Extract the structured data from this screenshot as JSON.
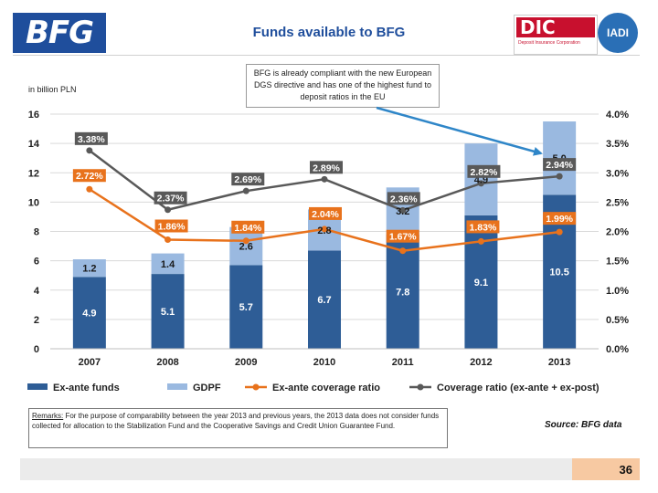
{
  "header": {
    "logo_left": "BFG",
    "title": "Funds available to BFG",
    "logo_right": "DIC",
    "logo_right_sub": "Deposit Insurance Corporation",
    "logo_far_right": "IADI"
  },
  "callout": {
    "text": "BFG is already compliant with the new European DGS directive and has one of the highest fund to deposit ratios in the EU"
  },
  "remarks": {
    "label": "Remarks:",
    "text": " For the purpose of comparability between the year 2013 and previous years, the 2013 data does not consider funds collected for allocation to the Stabilization Fund and the Cooperative Savings and Credit Union Guarantee Fund."
  },
  "source": "Source: BFG data",
  "page_number": "36",
  "colors": {
    "ex_ante": "#2e5d96",
    "gdpf": "#9ab9e0",
    "ex_ante_ratio": "#e8721c",
    "coverage_ratio": "#595959",
    "arrow": "#2f86c8"
  },
  "chart_data": {
    "type": "bar",
    "stacked": true,
    "unit_label": "in billion PLN",
    "categories": [
      "2007",
      "2008",
      "2009",
      "2010",
      "2011",
      "2012",
      "2013"
    ],
    "ylim": [
      0,
      16
    ],
    "y_ticks": [
      "0",
      "2",
      "4",
      "6",
      "8",
      "10",
      "12",
      "14",
      "16"
    ],
    "y2lim": [
      0.0,
      4.0
    ],
    "y2_ticks": [
      "0.0%",
      "0.5%",
      "1.0%",
      "1.5%",
      "2.0%",
      "2.5%",
      "3.0%",
      "3.5%",
      "4.0%"
    ],
    "grid": true,
    "legend_position": "bottom",
    "series": [
      {
        "name": "Ex-ante funds",
        "kind": "bar",
        "values": [
          4.9,
          5.1,
          5.7,
          6.7,
          7.8,
          9.1,
          10.5
        ],
        "labels": [
          "4.9",
          "5.1",
          "5.7",
          "6.7",
          "7.8",
          "9.1",
          "10.5"
        ]
      },
      {
        "name": "GDPF",
        "kind": "bar",
        "values": [
          1.2,
          1.4,
          2.6,
          2.8,
          3.2,
          4.9,
          5.0
        ],
        "labels": [
          "1.2",
          "1.4",
          "2.6",
          "2.8",
          "3.2",
          "4.9",
          "5.0"
        ]
      },
      {
        "name": "Ex-ante coverage ratio",
        "kind": "line",
        "axis": "right",
        "values": [
          2.72,
          1.86,
          1.84,
          2.04,
          1.67,
          1.83,
          1.99
        ],
        "labels": [
          "2.72%",
          "1.86%",
          "1.84%",
          "2.04%",
          "1.67%",
          "1.83%",
          "1.99%"
        ]
      },
      {
        "name": "Coverage ratio (ex-ante + ex-post)",
        "kind": "line",
        "axis": "right",
        "values": [
          3.38,
          2.37,
          2.69,
          2.89,
          2.36,
          2.82,
          2.94
        ],
        "labels": [
          "3.38%",
          "2.37%",
          "2.69%",
          "2.89%",
          "2.36%",
          "2.82%",
          "2.94%"
        ]
      }
    ]
  }
}
